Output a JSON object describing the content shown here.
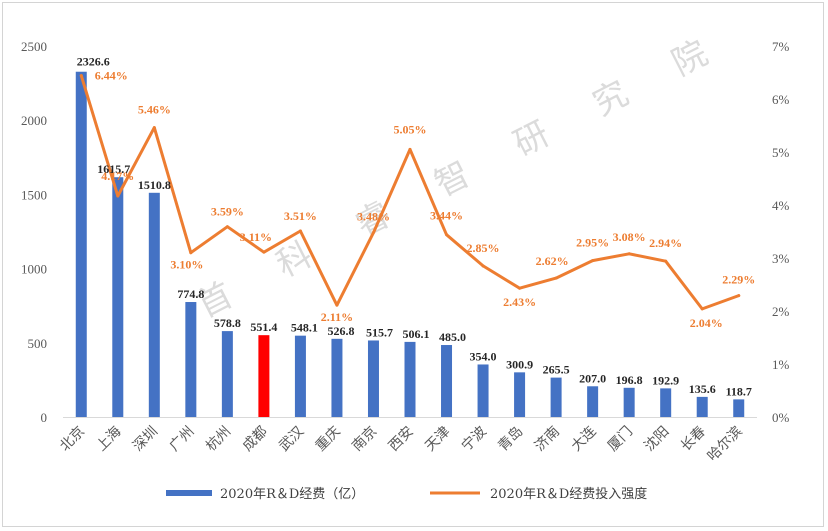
{
  "chart_data": {
    "type": "bar+line",
    "categories": [
      "北京",
      "上海",
      "深圳",
      "广州",
      "杭州",
      "成都",
      "武汉",
      "重庆",
      "南京",
      "西安",
      "天津",
      "宁波",
      "青岛",
      "济南",
      "大连",
      "厦门",
      "沈阳",
      "长春",
      "哈尔滨"
    ],
    "series": [
      {
        "name": "2020年R＆D经费（亿）",
        "type": "bar",
        "axis": "left",
        "values": [
          2326.6,
          1615.7,
          1510.8,
          774.8,
          578.8,
          551.4,
          548.1,
          526.8,
          515.7,
          506.1,
          485.0,
          354.0,
          300.9,
          265.5,
          207.0,
          196.8,
          192.9,
          135.6,
          118.7
        ],
        "labels": [
          "2326.6",
          "1615.7",
          "1510.8",
          "774.8",
          "578.8",
          "551.4",
          "548.1",
          "526.8",
          "515.7",
          "506.1",
          "485.0",
          "354.0",
          "300.9",
          "265.5",
          "207.0",
          "196.8",
          "192.9",
          "135.6",
          "118.7"
        ],
        "color": "#4472C4",
        "highlight_index": 5,
        "highlight_color": "#FF0000"
      },
      {
        "name": "2020年R＆D经费投入强度",
        "type": "line",
        "axis": "right",
        "values": [
          6.44,
          4.17,
          5.46,
          3.1,
          3.59,
          3.11,
          3.51,
          2.11,
          3.48,
          5.05,
          3.44,
          2.85,
          2.43,
          2.62,
          2.95,
          3.08,
          2.94,
          2.04,
          2.29
        ],
        "labels": [
          "6.44%",
          "4.17%",
          "5.46%",
          "3.10%",
          "3.59%",
          "3.11%",
          "3.51%",
          "2.11%",
          "3.48%",
          "5.05%",
          "3.44%",
          "2.85%",
          "2.43%",
          "2.62%",
          "2.95%",
          "3.08%",
          "2.94%",
          "2.04%",
          "2.29%"
        ],
        "color": "#ED7D31"
      }
    ],
    "y_left": {
      "ylim": [
        0,
        2500
      ],
      "ticks": [
        "0",
        "500",
        "1000",
        "1500",
        "2000",
        "2500"
      ]
    },
    "y_right": {
      "ylim": [
        0,
        7
      ],
      "ticks": [
        "0%",
        "1%",
        "2%",
        "3%",
        "4%",
        "5%",
        "6%",
        "7%"
      ]
    },
    "legend": "bottom",
    "watermark": "首 科 睿 智 研 究 院"
  }
}
